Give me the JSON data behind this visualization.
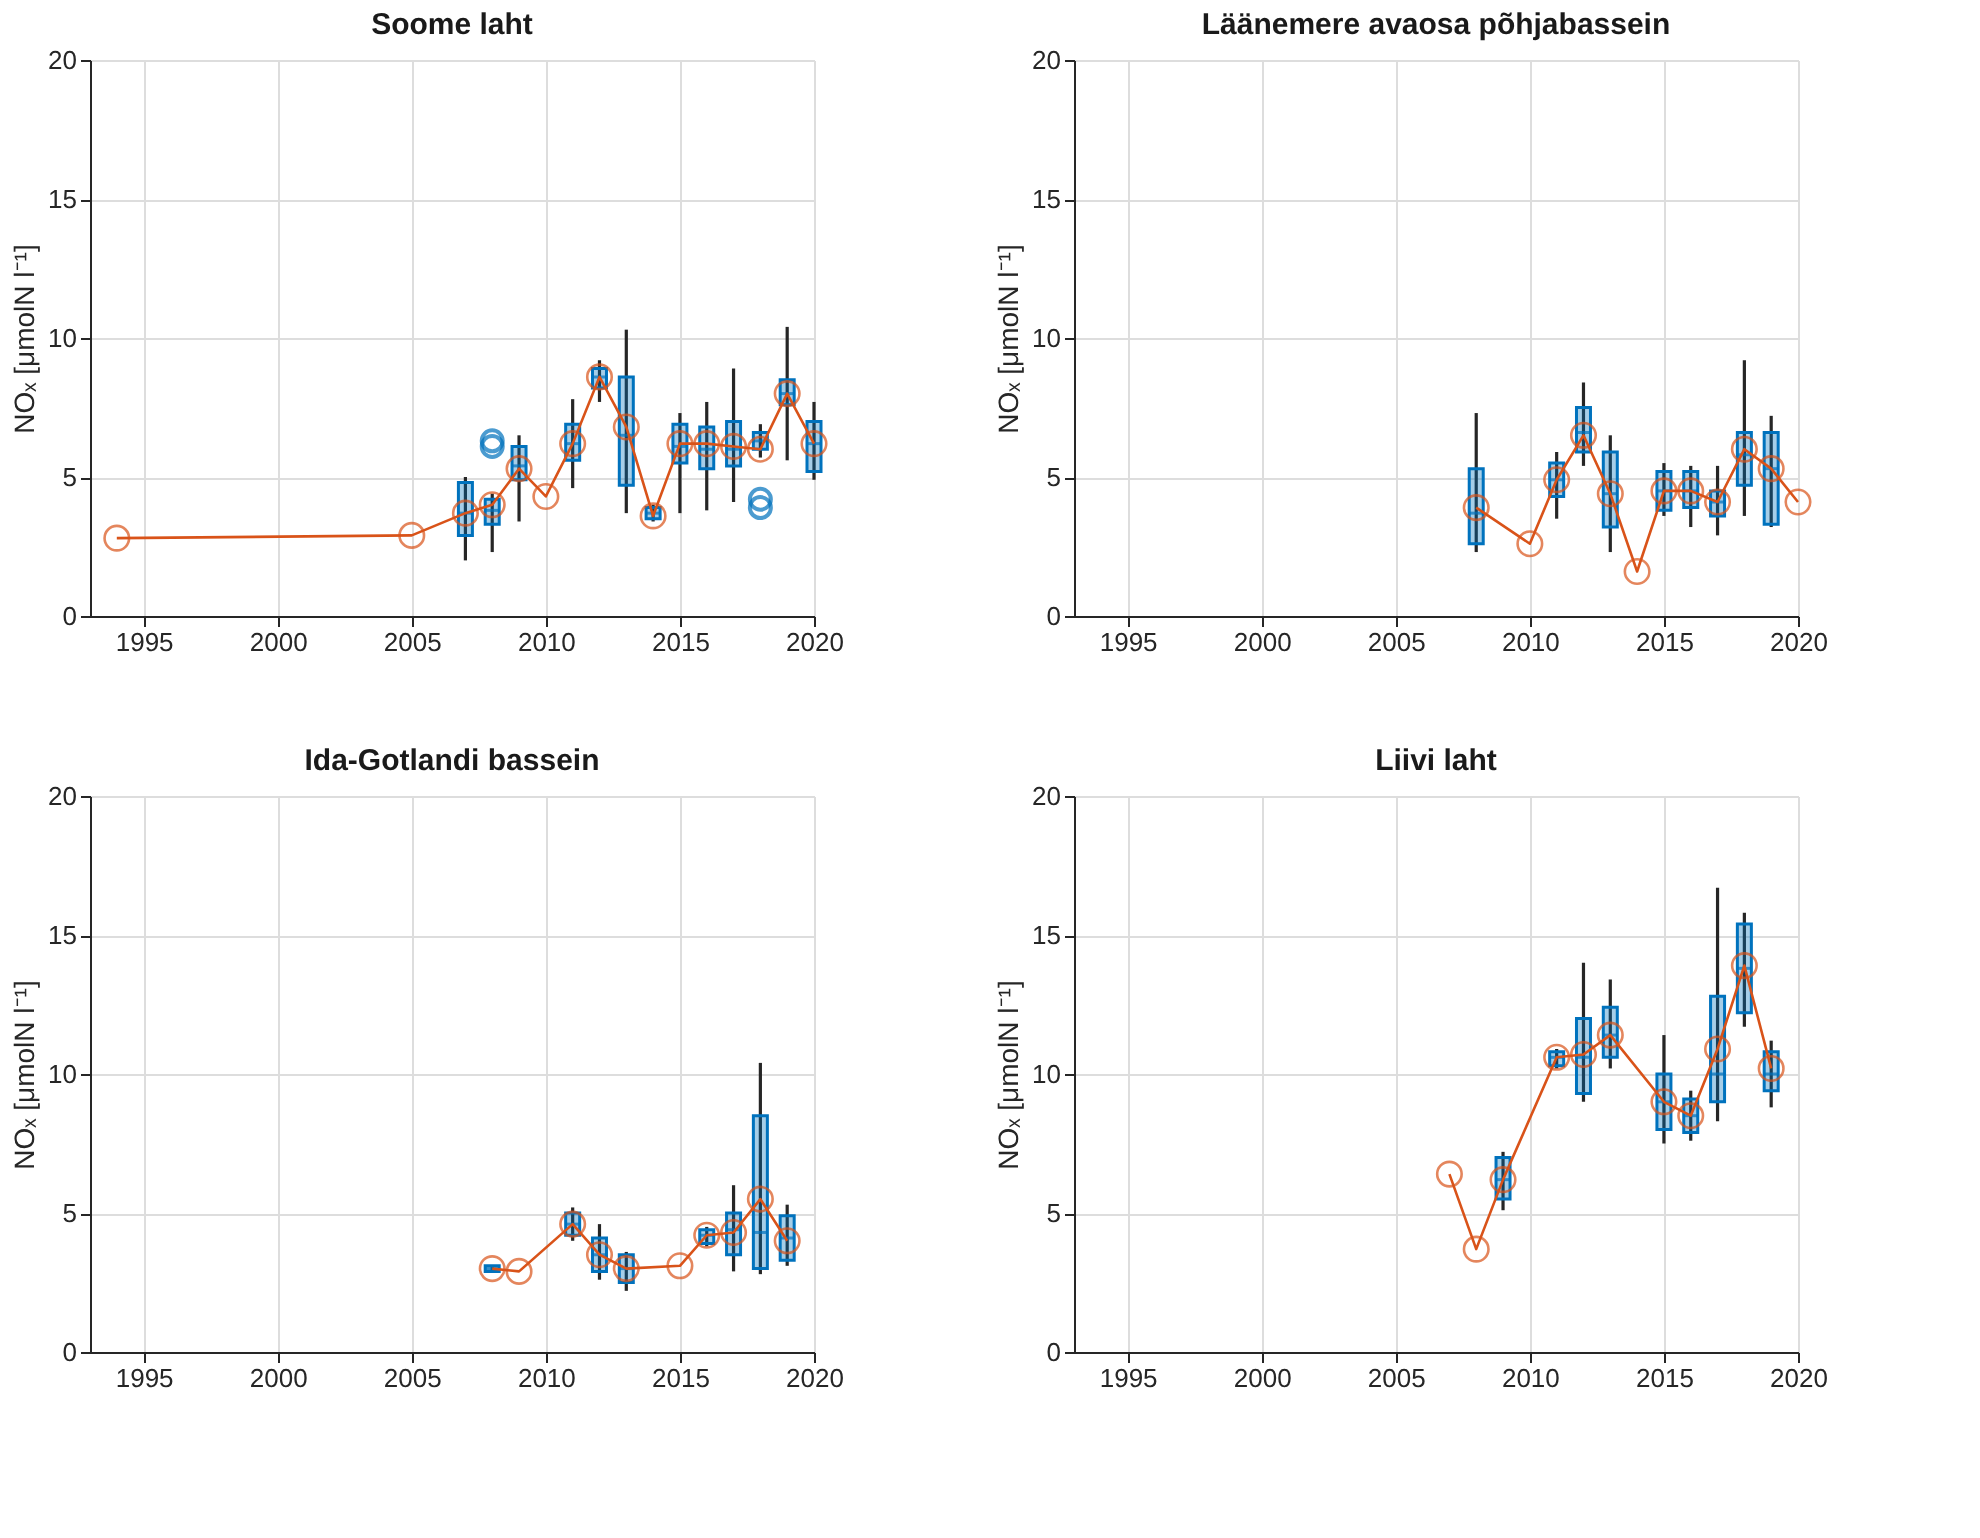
{
  "chart_data": [
    {
      "type": "box",
      "title": "Soome laht",
      "ylabel": "NOₓ [μmolN l⁻¹]",
      "xlim": [
        1993,
        2020
      ],
      "xticks": [
        1995,
        2000,
        2005,
        2010,
        2015,
        2020
      ],
      "ylim": [
        0,
        20
      ],
      "yticks": [
        0,
        5,
        10,
        15,
        20
      ],
      "grid": true,
      "series": [
        {
          "type": "box",
          "color": "#0072bd",
          "x": [
            2007,
            2008,
            2009,
            2011,
            2012,
            2013,
            2014,
            2015,
            2016,
            2017,
            2018,
            2019,
            2020
          ],
          "boxes": [
            {
              "low": 2.0,
              "q1": 2.9,
              "median": 3.7,
              "q3": 4.8,
              "high": 5.0
            },
            {
              "low": 2.3,
              "q1": 3.3,
              "median": 3.8,
              "q3": 4.2,
              "high": 4.4,
              "outliers": [
                6.1,
                6.3
              ]
            },
            {
              "low": 3.4,
              "q1": 4.9,
              "median": 5.4,
              "q3": 6.1,
              "high": 6.5
            },
            {
              "low": 4.6,
              "q1": 5.6,
              "median": 6.2,
              "q3": 6.9,
              "high": 7.8
            },
            {
              "low": 7.7,
              "q1": 8.2,
              "median": 8.6,
              "q3": 8.9,
              "high": 9.2
            },
            {
              "low": 3.7,
              "q1": 4.7,
              "median": 6.5,
              "q3": 8.6,
              "high": 10.3
            },
            {
              "low": 3.4,
              "q1": 3.5,
              "median": 3.7,
              "q3": 3.9,
              "high": 4.0
            },
            {
              "low": 3.7,
              "q1": 5.5,
              "median": 6.1,
              "q3": 6.9,
              "high": 7.3
            },
            {
              "low": 3.8,
              "q1": 5.3,
              "median": 6.0,
              "q3": 6.8,
              "high": 7.7
            },
            {
              "low": 4.1,
              "q1": 5.4,
              "median": 6.0,
              "q3": 7.0,
              "high": 8.9
            },
            {
              "low": 5.7,
              "q1": 6.0,
              "median": 6.3,
              "q3": 6.6,
              "high": 6.9,
              "outliers": [
                3.9,
                4.2
              ]
            },
            {
              "low": 5.6,
              "q1": 7.6,
              "median": 8.0,
              "q3": 8.5,
              "high": 10.4
            },
            {
              "low": 4.9,
              "q1": 5.2,
              "median": 6.2,
              "q3": 7.0,
              "high": 7.7
            }
          ]
        },
        {
          "type": "line",
          "color": "#d95319",
          "marker": "circle",
          "x": [
            1994,
            2005,
            2007,
            2008,
            2009,
            2010,
            2011,
            2012,
            2013,
            2014,
            2015,
            2016,
            2017,
            2018,
            2019,
            2020
          ],
          "values": [
            2.8,
            2.9,
            3.7,
            4.0,
            5.3,
            4.3,
            6.2,
            8.6,
            6.8,
            3.6,
            6.2,
            6.2,
            6.1,
            6.0,
            8.0,
            6.2
          ]
        }
      ]
    },
    {
      "type": "box",
      "title": "Läänemere avaosa põhjabassein",
      "ylabel": "NOₓ [μmolN l⁻¹]",
      "xlim": [
        1993,
        2020
      ],
      "xticks": [
        1995,
        2000,
        2005,
        2010,
        2015,
        2020
      ],
      "ylim": [
        0,
        20
      ],
      "yticks": [
        0,
        5,
        10,
        15,
        20
      ],
      "grid": true,
      "series": [
        {
          "type": "box",
          "color": "#0072bd",
          "x": [
            2008,
            2011,
            2012,
            2013,
            2015,
            2016,
            2017,
            2018,
            2019
          ],
          "boxes": [
            {
              "low": 2.3,
              "q1": 2.6,
              "median": 3.7,
              "q3": 5.3,
              "high": 7.3
            },
            {
              "low": 3.5,
              "q1": 4.3,
              "median": 4.9,
              "q3": 5.5,
              "high": 5.9
            },
            {
              "low": 5.4,
              "q1": 5.9,
              "median": 6.6,
              "q3": 7.5,
              "high": 8.4
            },
            {
              "low": 2.3,
              "q1": 3.2,
              "median": 4.4,
              "q3": 5.9,
              "high": 6.5
            },
            {
              "low": 3.6,
              "q1": 3.8,
              "median": 4.5,
              "q3": 5.2,
              "high": 5.5
            },
            {
              "low": 3.2,
              "q1": 3.9,
              "median": 4.5,
              "q3": 5.2,
              "high": 5.4
            },
            {
              "low": 2.9,
              "q1": 3.6,
              "median": 4.1,
              "q3": 4.5,
              "high": 5.4
            },
            {
              "low": 3.6,
              "q1": 4.7,
              "median": 5.8,
              "q3": 6.6,
              "high": 9.2
            },
            {
              "low": 3.2,
              "q1": 3.3,
              "median": 5.3,
              "q3": 6.6,
              "high": 7.2
            }
          ]
        },
        {
          "type": "line",
          "color": "#d95319",
          "marker": "circle",
          "x": [
            2008,
            2010,
            2011,
            2012,
            2013,
            2014,
            2015,
            2016,
            2017,
            2018,
            2019,
            2020
          ],
          "values": [
            3.9,
            2.6,
            4.9,
            6.5,
            4.4,
            1.6,
            4.5,
            4.5,
            4.1,
            6.0,
            5.3,
            4.1
          ]
        }
      ]
    },
    {
      "type": "box",
      "title": "Ida-Gotlandi bassein",
      "ylabel": "NOₓ [μmolN l⁻¹]",
      "xlim": [
        1993,
        2020
      ],
      "xticks": [
        1995,
        2000,
        2005,
        2010,
        2015,
        2020
      ],
      "ylim": [
        0,
        20
      ],
      "yticks": [
        0,
        5,
        10,
        15,
        20
      ],
      "grid": true,
      "series": [
        {
          "type": "box",
          "color": "#0072bd",
          "x": [
            2008,
            2011,
            2012,
            2013,
            2016,
            2017,
            2018,
            2019
          ],
          "boxes": [
            {
              "low": 2.9,
              "q1": 2.9,
              "median": 3.0,
              "q3": 3.1,
              "high": 3.1
            },
            {
              "low": 4.0,
              "q1": 4.2,
              "median": 4.6,
              "q3": 5.0,
              "high": 5.2
            },
            {
              "low": 2.6,
              "q1": 2.9,
              "median": 3.5,
              "q3": 4.1,
              "high": 4.6
            },
            {
              "low": 2.2,
              "q1": 2.5,
              "median": 3.0,
              "q3": 3.5,
              "high": 3.6
            },
            {
              "low": 3.8,
              "q1": 3.9,
              "median": 4.2,
              "q3": 4.4,
              "high": 4.5
            },
            {
              "low": 2.9,
              "q1": 3.5,
              "median": 4.4,
              "q3": 5.0,
              "high": 6.0
            },
            {
              "low": 2.8,
              "q1": 3.0,
              "median": 4.3,
              "q3": 8.5,
              "high": 10.4
            },
            {
              "low": 3.1,
              "q1": 3.3,
              "median": 4.1,
              "q3": 4.9,
              "high": 5.3
            }
          ]
        },
        {
          "type": "line",
          "color": "#d95319",
          "marker": "circle",
          "x": [
            2008,
            2009,
            2011,
            2012,
            2013,
            2015,
            2016,
            2017,
            2018,
            2019
          ],
          "values": [
            3.0,
            2.9,
            4.6,
            3.5,
            3.0,
            3.1,
            4.2,
            4.3,
            5.5,
            4.0
          ]
        }
      ]
    },
    {
      "type": "box",
      "title": "Liivi laht",
      "ylabel": "NOₓ [μmolN l⁻¹]",
      "xlim": [
        1993,
        2020
      ],
      "xticks": [
        1995,
        2000,
        2005,
        2010,
        2015,
        2020
      ],
      "ylim": [
        0,
        20
      ],
      "yticks": [
        0,
        5,
        10,
        15,
        20
      ],
      "grid": true,
      "series": [
        {
          "type": "box",
          "color": "#0072bd",
          "x": [
            2009,
            2011,
            2012,
            2013,
            2015,
            2016,
            2017,
            2018,
            2019
          ],
          "boxes": [
            {
              "low": 5.1,
              "q1": 5.5,
              "median": 6.2,
              "q3": 7.0,
              "high": 7.2
            },
            {
              "low": 10.2,
              "q1": 10.3,
              "median": 10.6,
              "q3": 10.8,
              "high": 10.9
            },
            {
              "low": 9.0,
              "q1": 9.3,
              "median": 10.6,
              "q3": 12.0,
              "high": 14.0
            },
            {
              "low": 10.2,
              "q1": 10.6,
              "median": 11.4,
              "q3": 12.4,
              "high": 13.4
            },
            {
              "low": 7.5,
              "q1": 8.0,
              "median": 9.0,
              "q3": 10.0,
              "high": 11.4
            },
            {
              "low": 7.6,
              "q1": 7.9,
              "median": 8.5,
              "q3": 9.1,
              "high": 9.4
            },
            {
              "low": 8.3,
              "q1": 9.0,
              "median": 10.0,
              "q3": 12.8,
              "high": 16.7
            },
            {
              "low": 11.7,
              "q1": 12.2,
              "median": 13.8,
              "q3": 15.4,
              "high": 15.8
            },
            {
              "low": 8.8,
              "q1": 9.4,
              "median": 10.0,
              "q3": 10.8,
              "high": 11.2
            }
          ]
        },
        {
          "type": "line",
          "color": "#d95319",
          "marker": "circle",
          "x": [
            2007,
            2008,
            2009,
            2011,
            2012,
            2013,
            2015,
            2016,
            2017,
            2018,
            2019
          ],
          "values": [
            6.4,
            3.7,
            6.2,
            10.6,
            10.7,
            11.4,
            9.0,
            8.5,
            10.9,
            13.9,
            10.2
          ]
        }
      ]
    }
  ]
}
